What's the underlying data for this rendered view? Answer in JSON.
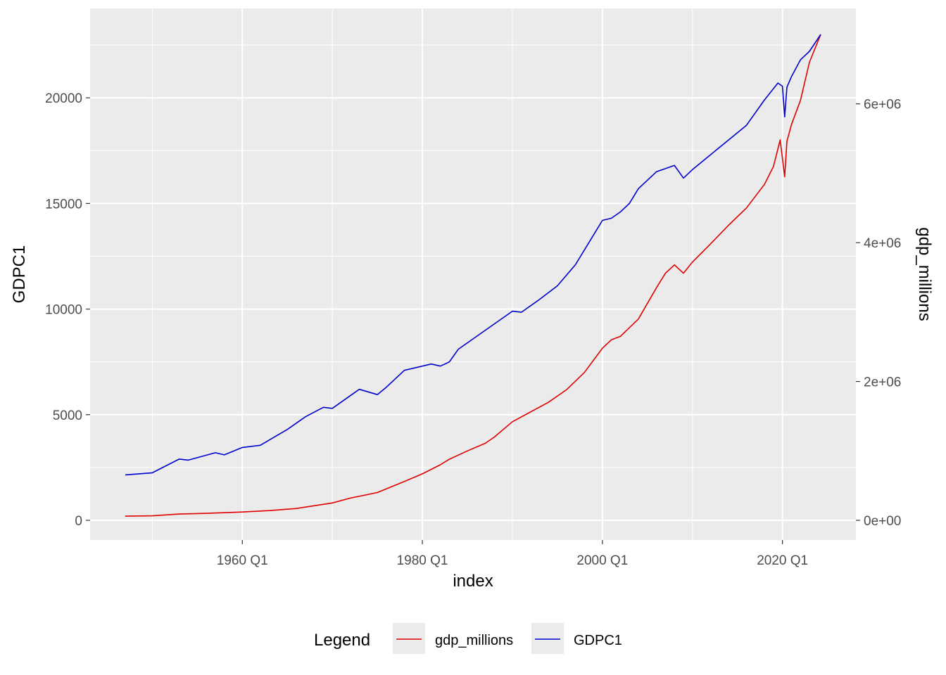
{
  "chart_data": {
    "type": "line",
    "xlabel": "index",
    "ylabel_left": "GDPC1",
    "ylabel_right": "gdp_millions",
    "x_range": [
      1947.0,
      2024.25
    ],
    "x_ticks": [
      {
        "value": 1960.0,
        "label": "1960 Q1"
      },
      {
        "value": 1980.0,
        "label": "1980 Q1"
      },
      {
        "value": 2000.0,
        "label": "2000 Q1"
      },
      {
        "value": 2020.0,
        "label": "2020 Q1"
      }
    ],
    "y_left_range": [
      0,
      23000
    ],
    "y_left_ticks": [
      {
        "value": 0,
        "label": "0"
      },
      {
        "value": 5000,
        "label": "5000"
      },
      {
        "value": 10000,
        "label": "10000"
      },
      {
        "value": 15000,
        "label": "15000"
      },
      {
        "value": 20000,
        "label": "20000"
      }
    ],
    "y_right_range": [
      0,
      7000000
    ],
    "y_right_ticks": [
      {
        "value": 0,
        "label": "0e+00"
      },
      {
        "value": 2000000,
        "label": "2e+06"
      },
      {
        "value": 4000000,
        "label": "4e+06"
      },
      {
        "value": 6000000,
        "label": "6e+06"
      }
    ],
    "grid": true,
    "legend": {
      "title": "Legend",
      "position": "bottom"
    },
    "series": [
      {
        "name": "gdp_millions",
        "color": "#e00000",
        "axis": "right",
        "x": [
          1947.0,
          1950.0,
          1953.0,
          1956.0,
          1960.0,
          1963.0,
          1966.0,
          1970.0,
          1972.0,
          1975.0,
          1978.0,
          1980.0,
          1982.0,
          1983.0,
          1985.0,
          1987.0,
          1988.0,
          1990.0,
          1992.0,
          1994.0,
          1996.0,
          1998.0,
          2000.0,
          2001.0,
          2002.0,
          2004.0,
          2006.0,
          2007.0,
          2008.0,
          2009.0,
          2010.0,
          2012.0,
          2014.0,
          2016.0,
          2018.0,
          2019.0,
          2019.75,
          2020.25,
          2020.5,
          2021.0,
          2022.0,
          2023.0,
          2024.25
        ],
        "values": [
          60000,
          65000,
          90000,
          100000,
          120000,
          140000,
          170000,
          250000,
          320000,
          400000,
          560000,
          670000,
          800000,
          880000,
          1000000,
          1110000,
          1200000,
          1420000,
          1560000,
          1700000,
          1880000,
          2130000,
          2480000,
          2600000,
          2650000,
          2900000,
          3350000,
          3560000,
          3680000,
          3560000,
          3720000,
          3980000,
          4250000,
          4500000,
          4840000,
          5100000,
          5480000,
          4950000,
          5460000,
          5700000,
          6050000,
          6600000,
          7000000
        ]
      },
      {
        "name": "GDPC1",
        "color": "#0000cc",
        "axis": "left",
        "x": [
          1947.0,
          1950.0,
          1953.0,
          1954.0,
          1957.0,
          1958.0,
          1960.0,
          1962.0,
          1965.0,
          1967.0,
          1969.0,
          1970.0,
          1972.0,
          1973.0,
          1975.0,
          1976.0,
          1978.0,
          1980.0,
          1981.0,
          1982.0,
          1983.0,
          1984.0,
          1986.0,
          1988.0,
          1990.0,
          1991.0,
          1993.0,
          1995.0,
          1997.0,
          1999.0,
          2000.0,
          2001.0,
          2002.0,
          2003.0,
          2004.0,
          2006.0,
          2008.0,
          2009.0,
          2010.0,
          2012.0,
          2014.0,
          2016.0,
          2018.0,
          2019.5,
          2020.0,
          2020.25,
          2020.5,
          2021.0,
          2022.0,
          2023.0,
          2024.25
        ],
        "values": [
          2150,
          2250,
          2900,
          2850,
          3200,
          3100,
          3450,
          3550,
          4300,
          4900,
          5350,
          5300,
          5900,
          6200,
          5950,
          6300,
          7100,
          7300,
          7400,
          7300,
          7500,
          8100,
          8700,
          9300,
          9900,
          9850,
          10450,
          11100,
          12100,
          13500,
          14200,
          14300,
          14600,
          15000,
          15700,
          16500,
          16800,
          16200,
          16600,
          17300,
          18000,
          18700,
          19900,
          20700,
          20550,
          19100,
          20500,
          21000,
          21800,
          22200,
          23000
        ]
      }
    ]
  }
}
